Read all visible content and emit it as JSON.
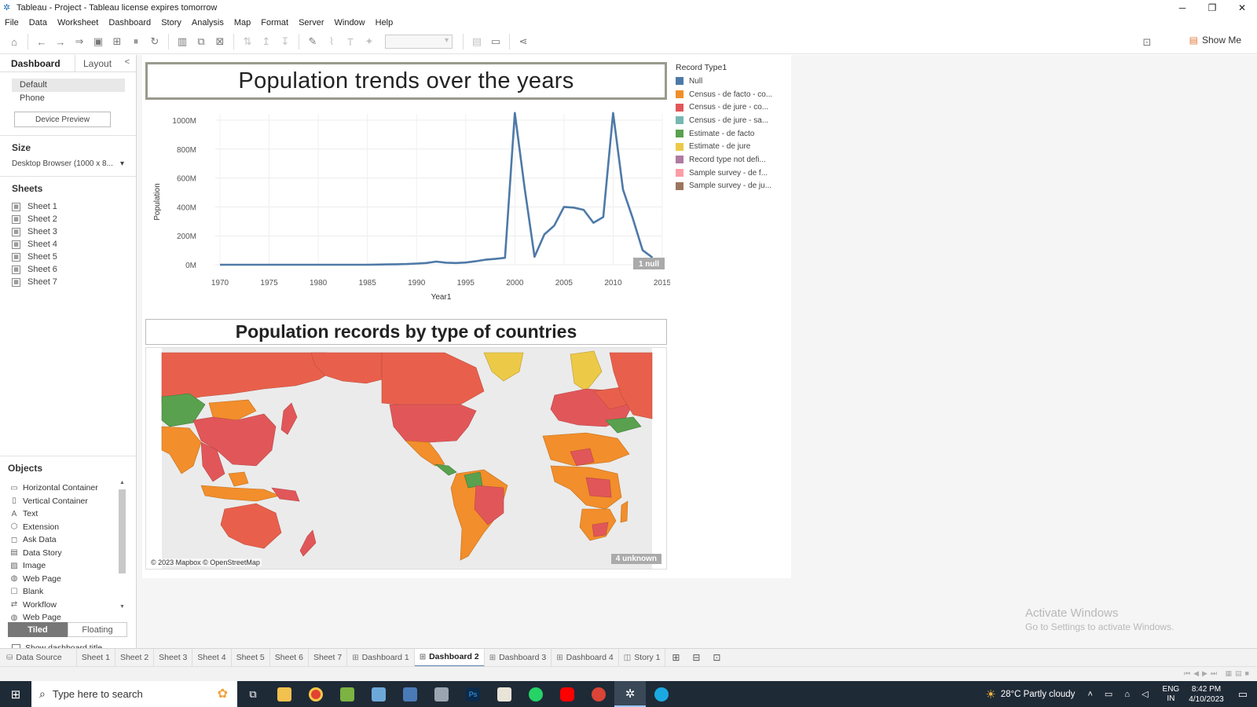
{
  "window": {
    "title": "Tableau - Project - Tableau license expires tomorrow"
  },
  "menu": [
    "File",
    "Data",
    "Worksheet",
    "Dashboard",
    "Story",
    "Analysis",
    "Map",
    "Format",
    "Server",
    "Window",
    "Help"
  ],
  "toolbar": {
    "show_me_label": "Show Me"
  },
  "left_panel": {
    "tabs": {
      "dashboard": "Dashboard",
      "layout": "Layout"
    },
    "devices": [
      "Default",
      "Phone"
    ],
    "device_preview_label": "Device Preview",
    "size_heading": "Size",
    "size_value": "Desktop Browser (1000 x 8...",
    "sheets_heading": "Sheets",
    "sheets": [
      "Sheet 1",
      "Sheet 2",
      "Sheet 3",
      "Sheet 4",
      "Sheet 5",
      "Sheet 6",
      "Sheet 7"
    ],
    "objects_heading": "Objects",
    "objects": [
      {
        "label": "Horizontal Container",
        "icon": "horizontal-container-icon",
        "glyph": "▭"
      },
      {
        "label": "Vertical Container",
        "icon": "vertical-container-icon",
        "glyph": "▯"
      },
      {
        "label": "Text",
        "icon": "text-icon",
        "glyph": "A"
      },
      {
        "label": "Extension",
        "icon": "extension-icon",
        "glyph": "⬡"
      },
      {
        "label": "Ask Data",
        "icon": "ask-data-icon",
        "glyph": "◻"
      },
      {
        "label": "Data Story",
        "icon": "data-story-icon",
        "glyph": "▤"
      },
      {
        "label": "Image",
        "icon": "image-icon",
        "glyph": "▨"
      },
      {
        "label": "Web Page",
        "icon": "web-page-icon",
        "glyph": "◍"
      },
      {
        "label": "Blank",
        "icon": "blank-icon",
        "glyph": "☐"
      },
      {
        "label": "Workflow",
        "icon": "workflow-icon",
        "glyph": "⇄"
      },
      {
        "label": "Web Page",
        "icon": "web-page-icon",
        "glyph": "◍"
      }
    ],
    "tiled_label": "Tiled",
    "floating_label": "Floating",
    "show_title_label": "Show dashboard title"
  },
  "dashboard": {
    "title_top": "Population trends over the years",
    "title_bottom": "Population records by type of countries",
    "null_badge": "1 null",
    "unknown_badge": "4 unknown",
    "map_attribution": "© 2023 Mapbox © OpenStreetMap",
    "legend": {
      "title": "Record Type1",
      "items": [
        {
          "label": "Null",
          "color": "#4e79a7"
        },
        {
          "label": "Census - de facto - co...",
          "color": "#f28e2b"
        },
        {
          "label": "Census - de jure - co...",
          "color": "#e15759"
        },
        {
          "label": "Census - de jure - sa...",
          "color": "#76b7b2"
        },
        {
          "label": "Estimate - de facto",
          "color": "#59a14f"
        },
        {
          "label": "Estimate - de jure",
          "color": "#edc948"
        },
        {
          "label": "Record type not defi...",
          "color": "#b07aa1"
        },
        {
          "label": "Sample survey - de f...",
          "color": "#ff9da7"
        },
        {
          "label": "Sample survey - de ju...",
          "color": "#9c755f"
        }
      ]
    }
  },
  "chart_data": {
    "type": "line",
    "title": "Population trends over the years",
    "xlabel": "Year1",
    "ylabel": "Population",
    "xlim": [
      1970,
      2015
    ],
    "ylim": [
      0,
      1000
    ],
    "y_unit": "M",
    "x_ticks": [
      1970,
      1975,
      1980,
      1985,
      1990,
      1995,
      2000,
      2005,
      2010,
      2015
    ],
    "y_ticks": [
      0,
      200,
      400,
      600,
      800,
      1000
    ],
    "y_tick_labels": [
      "0M",
      "200M",
      "400M",
      "600M",
      "800M",
      "1000M"
    ],
    "grid": true,
    "line_color": "#4e79a7",
    "series": [
      {
        "x": [
          1970,
          1975,
          1980,
          1985,
          1987,
          1988,
          1989,
          1990,
          1991,
          1992,
          1993,
          1994,
          1995,
          1996,
          1997,
          1998,
          1999,
          2000,
          2001,
          2002,
          2003,
          2004,
          2005,
          2006,
          2007,
          2008,
          2009,
          2010,
          2011,
          2012,
          2013,
          2014
        ],
        "y": [
          0,
          0,
          0,
          0,
          2,
          3,
          5,
          8,
          12,
          22,
          14,
          12,
          15,
          24,
          35,
          40,
          48,
          1050,
          530,
          55,
          210,
          270,
          400,
          395,
          380,
          290,
          330,
          1050,
          520,
          320,
          100,
          50
        ]
      }
    ]
  },
  "sheet_tabs": [
    "Data Source",
    "Sheet 1",
    "Sheet 2",
    "Sheet 3",
    "Sheet 4",
    "Sheet 5",
    "Sheet 6",
    "Sheet 7",
    "Dashboard 1",
    "Dashboard 2",
    "Dashboard 3",
    "Dashboard 4",
    "Story 1"
  ],
  "active_tab": "Dashboard 2",
  "watermark": {
    "line1": "Activate Windows",
    "line2": "Go to Settings to activate Windows."
  },
  "taskbar": {
    "search_placeholder": "Type here to search",
    "weather": "28°C  Partly cloudy",
    "lang_1": "ENG",
    "lang_2": "IN",
    "time": "8:42 PM",
    "date": "4/10/2023"
  },
  "colors": {
    "accent": "#4e79a7",
    "taskbar": "#1f2a37"
  }
}
